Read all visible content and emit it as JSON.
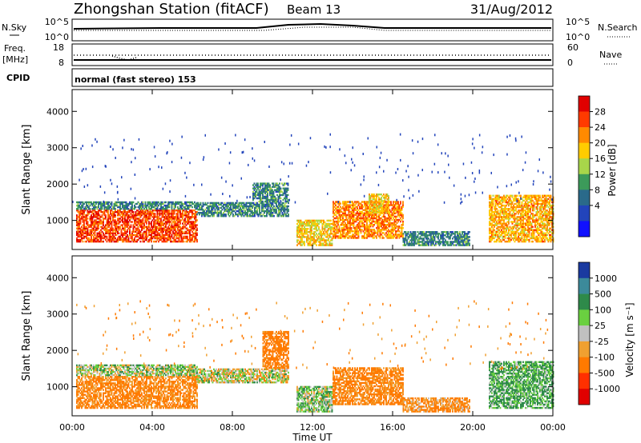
{
  "header": {
    "station": "Zhongshan Station (fitACF)",
    "beam": "Beam 13",
    "date": "31/Aug/2012"
  },
  "top_panels": {
    "nsky_label": "N.Sky",
    "nsky_ticks": [
      "10^5",
      "10^0"
    ],
    "nsearch_label": "N.Search",
    "nsearch_ticks": [
      "10^5",
      "10^0"
    ],
    "freq_label_1": "Freq.",
    "freq_label_2": "[MHz]",
    "freq_ticks": [
      "18",
      "8"
    ],
    "nave_label": "Nave",
    "nave_ticks": [
      "60",
      "0"
    ],
    "cpid_label": "CPID",
    "cpid_text": "normal (fast stereo) 153"
  },
  "colorbars": {
    "power": {
      "label": "Power [dB]",
      "ticks": [
        "28",
        "24",
        "20",
        "16",
        "12",
        "8",
        "4"
      ],
      "colors": [
        "#e00000",
        "#ff3a00",
        "#ff8a00",
        "#ffcc00",
        "#a8d64a",
        "#3c9a5a",
        "#2a6a8a",
        "#2244bb",
        "#1010ff"
      ]
    },
    "velocity": {
      "label": "Velocity [m s⁻¹]",
      "ticks": [
        "1000",
        "500",
        "100",
        "25",
        "-25",
        "-100",
        "-500",
        "-1000"
      ],
      "colors": [
        "#1a3aa0",
        "#3c8a9a",
        "#2e8a4a",
        "#6ad040",
        "#c0c0c0",
        "#f0a030",
        "#ff7a00",
        "#ff3000",
        "#e00000"
      ]
    }
  },
  "chart_data": [
    {
      "type": "heatmap",
      "name": "power",
      "ylabel": "Slant Range [km]",
      "yticks": [
        "4000",
        "3000",
        "2000",
        "1000"
      ],
      "ylim": [
        200,
        4600
      ],
      "xlim": [
        0,
        24
      ],
      "xticks": [
        "00:00",
        "04:00",
        "08:00",
        "12:00",
        "16:00",
        "20:00",
        "00:00"
      ],
      "regions": [
        {
          "t": [
            0.2,
            6.2
          ],
          "r": [
            400,
            1300
          ],
          "v": 26
        },
        {
          "t": [
            0.2,
            6.2
          ],
          "r": [
            1300,
            1500
          ],
          "v": 8
        },
        {
          "t": [
            6.2,
            10.8
          ],
          "r": [
            1100,
            1500
          ],
          "v": 8
        },
        {
          "t": [
            9.0,
            10.8
          ],
          "r": [
            1500,
            2000
          ],
          "v": 8
        },
        {
          "t": [
            11.2,
            13.0
          ],
          "r": [
            300,
            1000
          ],
          "v": 18
        },
        {
          "t": [
            13.0,
            16.5
          ],
          "r": [
            500,
            1500
          ],
          "v": 22
        },
        {
          "t": [
            14.8,
            15.8
          ],
          "r": [
            1200,
            1700
          ],
          "v": 18
        },
        {
          "t": [
            16.5,
            19.8
          ],
          "r": [
            300,
            700
          ],
          "v": 8
        },
        {
          "t": [
            20.8,
            24.0
          ],
          "r": [
            400,
            1700
          ],
          "v": 20
        }
      ]
    },
    {
      "type": "heatmap",
      "name": "velocity",
      "ylabel": "Slant Range [km]",
      "xlabel": "Time UT",
      "yticks": [
        "4000",
        "3000",
        "2000",
        "1000"
      ],
      "ylim": [
        200,
        4600
      ],
      "xlim": [
        0,
        24
      ],
      "xticks": [
        "00:00",
        "04:00",
        "08:00",
        "12:00",
        "16:00",
        "20:00",
        "00:00"
      ],
      "regions": [
        {
          "t": [
            0.2,
            6.2
          ],
          "r": [
            400,
            1300
          ],
          "v": -150
        },
        {
          "t": [
            0.2,
            6.2
          ],
          "r": [
            1300,
            1600
          ],
          "v": 40
        },
        {
          "t": [
            6.2,
            10.8
          ],
          "r": [
            1100,
            1500
          ],
          "v": 0
        },
        {
          "t": [
            9.5,
            10.8
          ],
          "r": [
            1500,
            2500
          ],
          "v": -200
        },
        {
          "t": [
            11.2,
            13.0
          ],
          "r": [
            300,
            1000
          ],
          "v": 60
        },
        {
          "t": [
            13.0,
            16.5
          ],
          "r": [
            500,
            1500
          ],
          "v": -150
        },
        {
          "t": [
            16.5,
            19.8
          ],
          "r": [
            300,
            700
          ],
          "v": -120
        },
        {
          "t": [
            20.8,
            24.0
          ],
          "r": [
            400,
            1700
          ],
          "v": 120
        }
      ]
    }
  ]
}
